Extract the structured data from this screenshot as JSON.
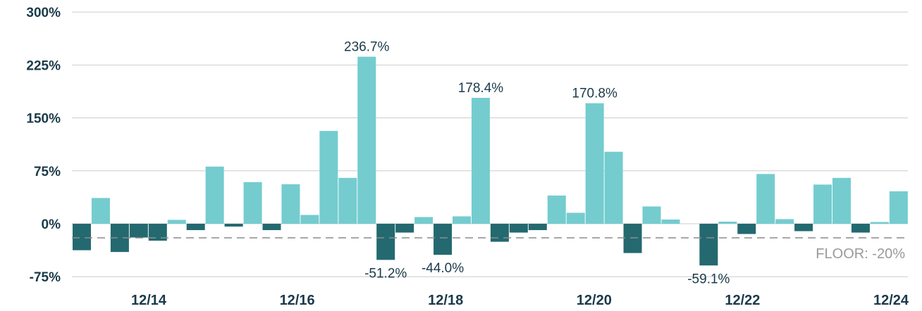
{
  "chart_data": {
    "type": "bar",
    "y_unit": "%",
    "ylim": [
      -75,
      300
    ],
    "yticks": [
      "300%",
      "225%",
      "150%",
      "75%",
      "0%",
      "-75%"
    ],
    "ytick_values": [
      300,
      225,
      150,
      75,
      0,
      -75
    ],
    "xticks": [
      "12/14",
      "12/16",
      "12/18",
      "12/20",
      "12/22",
      "12/24"
    ],
    "grid": true,
    "colors": {
      "positive": "#74cccf",
      "negative": "#246970",
      "grid": "#cccccc",
      "floor": "#8c8c8c",
      "text": "#1a3a4a"
    },
    "floor": {
      "value": -20,
      "label": "FLOOR: -20%"
    },
    "values": [
      -37.5,
      36.5,
      -40,
      -19.5,
      -24,
      5.5,
      -9,
      81,
      -4,
      59,
      -9,
      56,
      12.5,
      131.5,
      65,
      236.7,
      -51.2,
      -12.5,
      9.5,
      -44.0,
      10.5,
      178.4,
      -25.5,
      -12.5,
      -9,
      40,
      15.5,
      170.8,
      102,
      -41.5,
      24.5,
      6,
      0,
      -59.1,
      3,
      -14.5,
      70.5,
      6.5,
      -10.5,
      55.5,
      65,
      -12.5,
      2.5,
      46
    ],
    "data_labels": [
      {
        "index": 15,
        "text": "236.7%"
      },
      {
        "index": 16,
        "text": "-51.2%"
      },
      {
        "index": 19,
        "text": "-44.0%"
      },
      {
        "index": 21,
        "text": "178.4%"
      },
      {
        "index": 27,
        "text": "170.8%"
      },
      {
        "index": 33,
        "text": "-59.1%"
      }
    ]
  }
}
